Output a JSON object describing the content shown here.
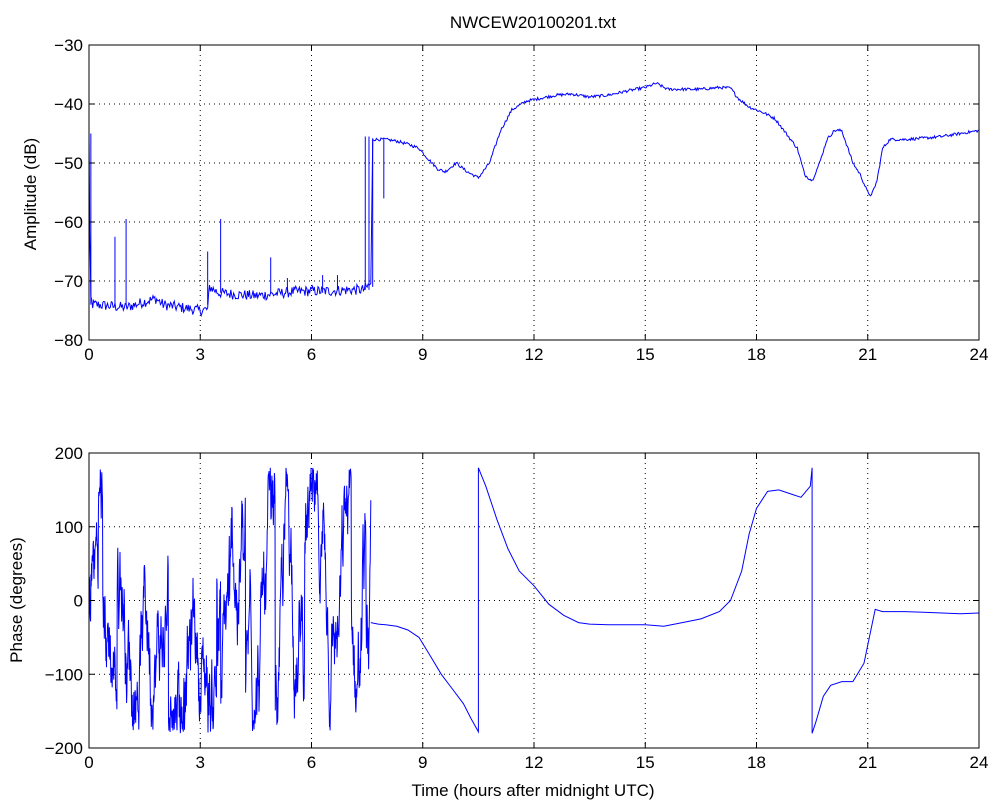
{
  "chart_data": [
    {
      "type": "line",
      "title": "NWCEW20100201.txt",
      "xlabel": "",
      "ylabel": "Amplitude (dB)",
      "xlim": [
        0,
        24
      ],
      "ylim": [
        -80,
        -30
      ],
      "xticks": [
        0,
        3,
        6,
        9,
        12,
        15,
        18,
        21,
        24
      ],
      "yticks": [
        -80,
        -70,
        -60,
        -50,
        -40,
        -30
      ],
      "xtick_labels": [
        "0",
        "3",
        "6",
        "9",
        "12",
        "15",
        "18",
        "21",
        "24"
      ],
      "ytick_labels": [
        "−80",
        "−70",
        "−60",
        "−50",
        "−40",
        "−30"
      ],
      "grid": true,
      "color": "#0000ff",
      "series": [
        {
          "x": [
            0,
            0.02,
            0.05,
            0.1,
            0.2,
            0.5,
            1.0,
            1.5,
            1.8,
            2.0,
            2.5,
            3.0,
            3.2,
            3.25,
            3.5,
            4.0,
            4.5,
            5.0,
            5.5,
            6.0,
            6.5,
            7.0,
            7.4,
            7.6,
            7.65,
            8.0,
            8.3,
            8.6,
            8.9,
            9.1,
            9.4,
            9.6,
            9.9,
            10.2,
            10.5,
            10.8,
            11.1,
            11.4,
            11.8,
            12.2,
            12.6,
            13.0,
            13.5,
            14.0,
            14.5,
            15.0,
            15.3,
            15.6,
            16.0,
            16.5,
            17.0,
            17.3,
            17.5,
            17.8,
            18.2,
            18.5,
            18.8,
            19.1,
            19.3,
            19.5,
            19.7,
            19.9,
            20.1,
            20.3,
            20.6,
            20.8,
            21.0,
            21.1,
            21.25,
            21.4,
            21.6,
            22.0,
            22.5,
            23.0,
            23.5,
            24.0
          ],
          "y": [
            -45,
            -62,
            -73,
            -74,
            -74,
            -74.2,
            -74.5,
            -73.5,
            -73,
            -74,
            -74.5,
            -75,
            -74.8,
            -71,
            -72,
            -72.3,
            -72.5,
            -72.2,
            -71.8,
            -71.7,
            -71.7,
            -71.5,
            -71.5,
            -70.5,
            -46,
            -46,
            -46.3,
            -46.8,
            -47.5,
            -49,
            -51,
            -51.5,
            -50,
            -51.5,
            -52.5,
            -50,
            -44.5,
            -41,
            -39.5,
            -39,
            -38.5,
            -38.3,
            -38.8,
            -38.5,
            -37.8,
            -37.2,
            -36.5,
            -37.5,
            -37.5,
            -37.5,
            -37.2,
            -37.3,
            -39,
            -40.5,
            -41.5,
            -42.5,
            -45,
            -47.5,
            -52,
            -53,
            -50,
            -46,
            -44.5,
            -44.5,
            -50,
            -52,
            -55,
            -55.5,
            -53,
            -47.5,
            -46,
            -46,
            -45.8,
            -45.5,
            -45,
            -44.5
          ]
        }
      ],
      "spikes": [
        {
          "x": 0.05,
          "from": -74,
          "to": -45
        },
        {
          "x": 0.7,
          "from": -74,
          "to": -62.5
        },
        {
          "x": 1.0,
          "from": -74,
          "to": -59.5
        },
        {
          "x": 3.2,
          "from": -74,
          "to": -65
        },
        {
          "x": 3.55,
          "from": -72,
          "to": -59.5
        },
        {
          "x": 4.9,
          "from": -72,
          "to": -66
        },
        {
          "x": 5.35,
          "from": -72,
          "to": -69.5
        },
        {
          "x": 6.3,
          "from": -72,
          "to": -69
        },
        {
          "x": 6.7,
          "from": -71.5,
          "to": -69
        },
        {
          "x": 7.45,
          "from": -71.5,
          "to": -45.5
        },
        {
          "x": 7.55,
          "from": -71.5,
          "to": -45.5
        },
        {
          "x": 7.65,
          "from": -71,
          "to": -45.8
        },
        {
          "x": 7.95,
          "from": -46,
          "to": -56
        }
      ]
    },
    {
      "type": "line",
      "title": "",
      "xlabel": "Time (hours after midnight UTC)",
      "ylabel": "Phase (degrees)",
      "xlim": [
        0,
        24
      ],
      "ylim": [
        -200,
        200
      ],
      "xticks": [
        0,
        3,
        6,
        9,
        12,
        15,
        18,
        21,
        24
      ],
      "yticks": [
        -200,
        -100,
        0,
        100,
        200
      ],
      "xtick_labels": [
        "0",
        "3",
        "6",
        "9",
        "12",
        "15",
        "18",
        "21",
        "24"
      ],
      "ytick_labels": [
        "−200",
        "−100",
        "0",
        "100",
        "200"
      ],
      "grid": true,
      "color": "#0000ff",
      "series": [
        {
          "x": [
            7.6,
            7.8,
            8.0,
            8.3,
            8.6,
            8.9,
            9.2,
            9.5,
            9.8,
            10.1,
            10.3,
            10.5,
            10.5,
            10.7,
            11.0,
            11.3,
            11.6,
            12.0,
            12.4,
            12.8,
            13.2,
            13.5,
            14.0,
            14.5,
            15.0,
            15.5,
            16.0,
            16.5,
            17.0,
            17.3,
            17.6,
            17.8,
            18.0,
            18.3,
            18.6,
            18.9,
            19.2,
            19.45,
            19.5,
            19.5,
            19.6,
            19.8,
            20.0,
            20.3,
            20.6,
            20.9,
            21.0,
            21.2,
            21.4,
            21.7,
            22.0,
            22.5,
            23.0,
            23.5,
            24.0
          ],
          "y": [
            -30,
            -32,
            -33,
            -35,
            -40,
            -50,
            -75,
            -100,
            -120,
            -140,
            -160,
            -178,
            180,
            155,
            110,
            70,
            40,
            20,
            -5,
            -20,
            -30,
            -32,
            -33,
            -33,
            -33,
            -35,
            -30,
            -25,
            -15,
            0,
            40,
            90,
            125,
            148,
            150,
            145,
            140,
            155,
            180,
            -180,
            -165,
            -130,
            -115,
            -110,
            -110,
            -85,
            -60,
            -12,
            -15,
            -15,
            -15,
            -16,
            -17,
            -18,
            -17
          ]
        }
      ],
      "noisy_region": {
        "x_start": 0,
        "x_end": 7.6,
        "min": -180,
        "max": 180
      }
    }
  ]
}
